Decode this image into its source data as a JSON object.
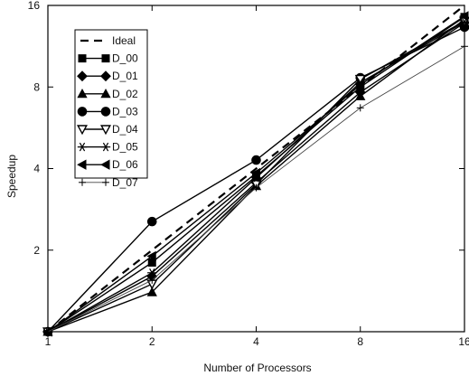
{
  "chart_data": {
    "type": "line",
    "xlabel": "Number of Processors",
    "ylabel": "Speedup",
    "x": [
      1,
      2,
      4,
      8,
      16
    ],
    "x_scale": "log2",
    "y_scale": "log2",
    "xlim": [
      1,
      16
    ],
    "ylim": [
      1,
      16
    ],
    "x_ticks": [
      "1",
      "2",
      "4",
      "8",
      "16"
    ],
    "y_ticks": [
      "2",
      "4",
      "8",
      "16"
    ],
    "y_tick_values": [
      2,
      4,
      8,
      16
    ],
    "grid": false,
    "legend_position": "top-left",
    "series": [
      {
        "name": "Ideal",
        "marker": "none",
        "dash": "dashed",
        "values": [
          1,
          2,
          4,
          8,
          16
        ]
      },
      {
        "name": "D_00",
        "marker": "square",
        "dash": "solid",
        "values": [
          1,
          1.8,
          3.75,
          8.0,
          14.5
        ]
      },
      {
        "name": "D_01",
        "marker": "diamond",
        "dash": "solid",
        "values": [
          1,
          1.6,
          3.55,
          7.65,
          13.8
        ]
      },
      {
        "name": "D_02",
        "marker": "triangle-up",
        "dash": "solid",
        "values": [
          1,
          1.4,
          3.45,
          7.4,
          14.2
        ]
      },
      {
        "name": "D_03",
        "marker": "circle",
        "dash": "solid",
        "values": [
          1,
          2.55,
          4.3,
          8.65,
          13.3
        ]
      },
      {
        "name": "D_04",
        "marker": "triangle-down",
        "dash": "solid",
        "values": [
          1,
          1.5,
          3.5,
          8.55,
          14.0
        ]
      },
      {
        "name": "D_05",
        "marker": "asterisk",
        "dash": "solid",
        "values": [
          1,
          1.65,
          3.7,
          8.3,
          13.9
        ]
      },
      {
        "name": "D_06",
        "marker": "triangle-left",
        "dash": "solid",
        "values": [
          1,
          1.9,
          3.85,
          8.15,
          14.6
        ]
      },
      {
        "name": "D_07",
        "marker": "plus",
        "dash": "thin",
        "values": [
          1,
          1.55,
          3.4,
          6.7,
          11.3
        ]
      }
    ]
  }
}
